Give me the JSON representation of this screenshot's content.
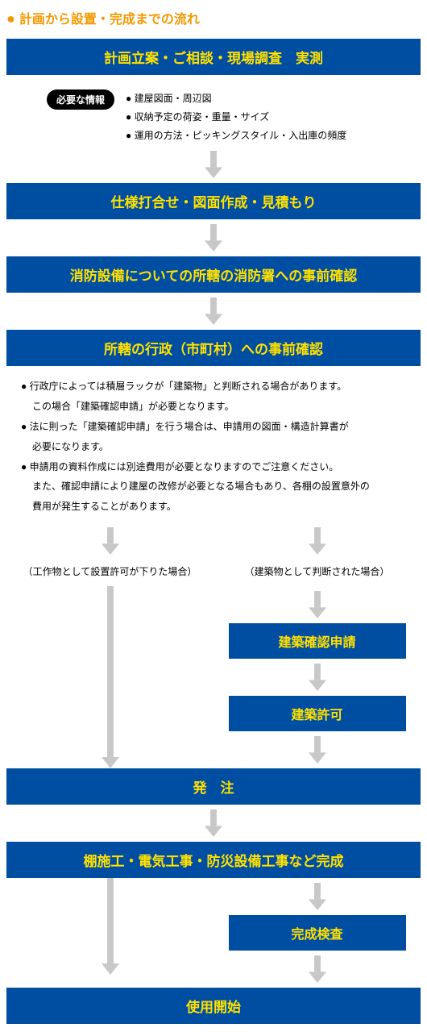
{
  "colors": {
    "orange": "#f39800",
    "blue_bar": "#004ea2",
    "bar_text": "#ffe100",
    "black": "#000000",
    "white": "#ffffff",
    "arrow_gray": "#c8c8c8",
    "text_black": "#000000"
  },
  "page_title_prefix": "● ",
  "page_title": "計画から設置・完成までの流れ",
  "step1": "計画立案・ご相談・現場調査　実測",
  "info_pill": "必要な情報",
  "info_items": [
    "建屋図面・周辺図",
    "収納予定の荷姿・重量・サイズ",
    "運用の方法・ピッキングスタイル・入出庫の頻度"
  ],
  "step2": "仕様打合せ・図面作成・見積もり",
  "step3": "消防設備についての所轄の消防署への事前確認",
  "step4": "所轄の行政（市町村）への事前確認",
  "notes": [
    {
      "t": "行政庁によっては積層ラックが「建築物」と判断される場合があります。",
      "b": true
    },
    {
      "t": "この場合「建築確認申請」が必要となります。",
      "b": false
    },
    {
      "t": "法に則った「建築確認申請」を行う場合は、申請用の図面・構造計算書が",
      "b": true
    },
    {
      "t": "必要になります。",
      "b": false
    },
    {
      "t": "申請用の資料作成には別途費用が必要となりますのでご注意ください。",
      "b": true
    },
    {
      "t": "また、確認申請により建屋の改修が必要となる場合もあり、各棚の設置意外の",
      "b": false
    },
    {
      "t": "費用が発生することがあります。",
      "b": false
    }
  ],
  "branch_left_label": "（工作物として設置許可が下りた場合）",
  "branch_right_label": "（建築物として判断された場合）",
  "step_r1": "建築確認申請",
  "step_r2": "建築許可",
  "step5": "発　注",
  "step6": "棚施工・電気工事・防災設備工事など完成",
  "step_r3": "完成検査",
  "step7": "使用開始",
  "style": {
    "title_fontsize": 16,
    "bar_fontsize": 17,
    "half_bar_fontsize": 16,
    "small_text_fontsize": 12,
    "arrow_short_h": 34,
    "arrow_short_w": 22,
    "arrow_tall_h": 226,
    "arrow_mid_h": 120
  }
}
